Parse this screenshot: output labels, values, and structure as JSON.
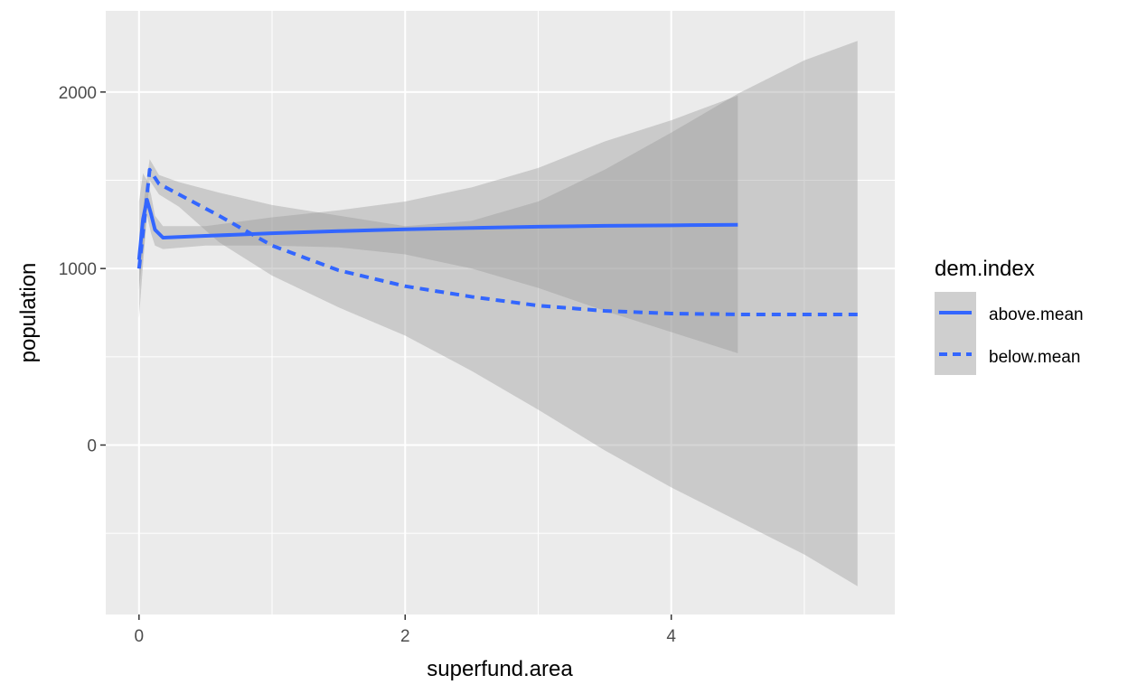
{
  "chart_data": {
    "type": "line",
    "title": "",
    "xlabel": "superfund.area",
    "ylabel": "population",
    "xlim": [
      -0.25,
      5.68
    ],
    "ylim": [
      -960,
      2460
    ],
    "x_ticks": [
      0,
      2,
      4
    ],
    "x_tick_labels": [
      "0",
      "2",
      "4"
    ],
    "y_ticks": [
      0,
      1000,
      2000
    ],
    "y_tick_labels": [
      "0",
      "1000",
      "2000"
    ],
    "grid": true,
    "legend": {
      "title": "dem.index",
      "placement": "right",
      "entries": [
        "above.mean",
        "below.mean"
      ]
    },
    "series": [
      {
        "name": "above.mean",
        "line_style": "solid",
        "color": "#3366FF",
        "x": [
          0,
          0.03,
          0.06,
          0.09,
          0.12,
          0.18,
          0.5,
          1.0,
          1.5,
          2.0,
          2.5,
          3.0,
          3.5,
          4.0,
          4.5
        ],
        "y": [
          1050,
          1280,
          1390,
          1310,
          1220,
          1175,
          1185,
          1200,
          1212,
          1222,
          1230,
          1237,
          1242,
          1245,
          1248
        ],
        "ci_lower": [
          720,
          1020,
          1300,
          1200,
          1130,
          1110,
          1130,
          1130,
          1120,
          1080,
          1000,
          890,
          760,
          640,
          520
        ],
        "ci_upper": [
          1380,
          1540,
          1500,
          1420,
          1300,
          1240,
          1240,
          1290,
          1330,
          1380,
          1460,
          1570,
          1720,
          1840,
          1980
        ]
      },
      {
        "name": "below.mean",
        "line_style": "dashed",
        "color": "#3366FF",
        "x": [
          0,
          0.04,
          0.08,
          0.15,
          0.3,
          0.6,
          1.0,
          1.5,
          2.0,
          2.5,
          3.0,
          3.5,
          4.0,
          4.5,
          5.0,
          5.4
        ],
        "y": [
          1000,
          1270,
          1560,
          1480,
          1420,
          1300,
          1130,
          990,
          900,
          840,
          790,
          760,
          745,
          740,
          740,
          740
        ],
        "ci_lower": [
          880,
          1150,
          1500,
          1420,
          1350,
          1150,
          960,
          780,
          620,
          420,
          200,
          -30,
          -240,
          -430,
          -620,
          -800
        ],
        "ci_upper": [
          1120,
          1400,
          1620,
          1530,
          1490,
          1430,
          1360,
          1300,
          1240,
          1270,
          1380,
          1560,
          1770,
          1990,
          2180,
          2290
        ]
      }
    ]
  }
}
